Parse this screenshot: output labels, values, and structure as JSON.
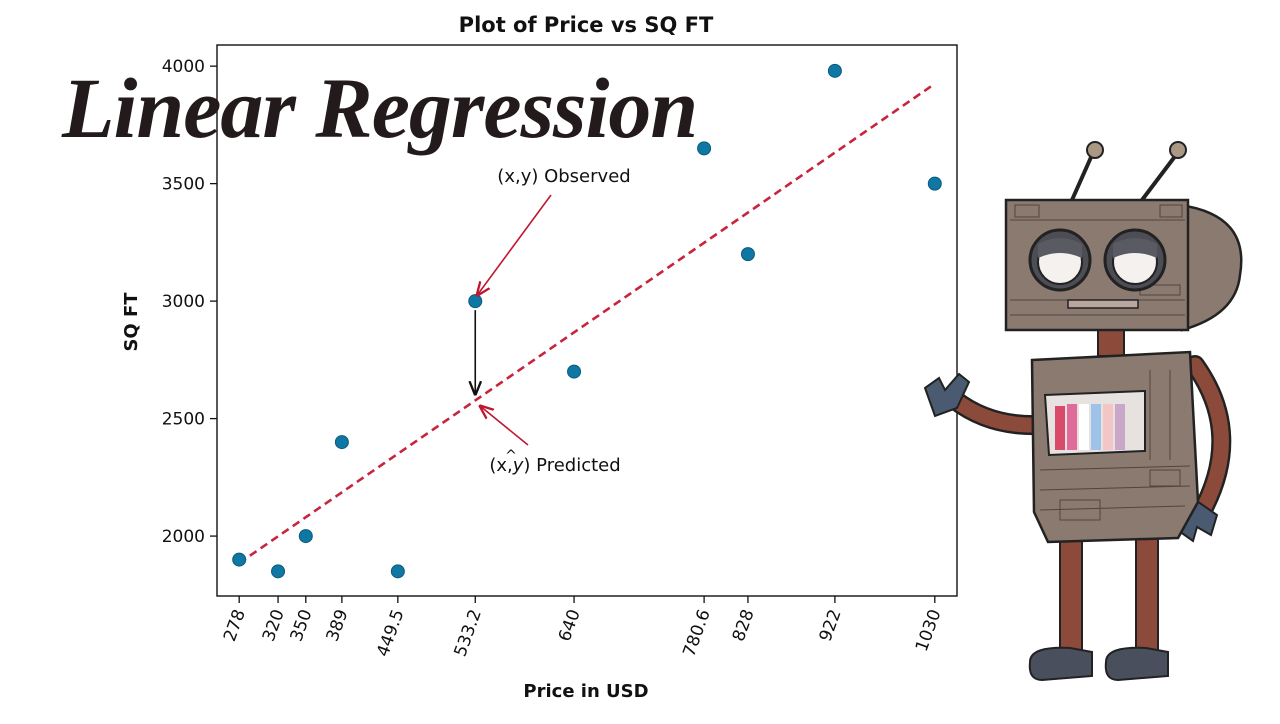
{
  "overlay_title": "Linear Regression",
  "chart_data": {
    "type": "scatter",
    "title": "Plot of Price vs SQ FT",
    "xlabel": "Price in USD",
    "ylabel": "SQ FT",
    "xlim": [
      254,
      1054
    ],
    "ylim": [
      1745,
      4090
    ],
    "xticks": [
      278,
      320,
      350,
      389,
      449.5,
      533.2,
      640,
      780.6,
      828,
      922,
      1030
    ],
    "xtick_labels": [
      "278",
      "320",
      "350",
      "389",
      "449.5",
      "533.2",
      "640",
      "780.6",
      "828",
      "922",
      "1030"
    ],
    "yticks": [
      2000,
      2500,
      3000,
      3500,
      4000
    ],
    "ytick_labels": [
      "2000",
      "2500",
      "3000",
      "3500",
      "4000"
    ],
    "points": [
      {
        "x": 278,
        "y": 1900
      },
      {
        "x": 320,
        "y": 1850
      },
      {
        "x": 350,
        "y": 2000
      },
      {
        "x": 389,
        "y": 2400
      },
      {
        "x": 449.5,
        "y": 1850
      },
      {
        "x": 533.2,
        "y": 3000
      },
      {
        "x": 640,
        "y": 2700
      },
      {
        "x": 780.6,
        "y": 3650
      },
      {
        "x": 828,
        "y": 3200
      },
      {
        "x": 922,
        "y": 3980
      },
      {
        "x": 1030,
        "y": 3500
      }
    ],
    "regression_line": {
      "x": [
        278,
        1030
      ],
      "y": [
        1885,
        3925
      ]
    },
    "annotations": {
      "observed": {
        "label": "(x,y) Observed",
        "point": {
          "x": 533.2,
          "y": 3000
        }
      },
      "predicted": {
        "label_prefix": "(x,",
        "label_y": "y",
        "label_hat": "^",
        "label_suffix": ") Predicted",
        "point": {
          "x": 533.2,
          "y": 2570
        }
      }
    },
    "colors": {
      "points": "#0f77a3",
      "point_edge": "#0b5a7d",
      "line": "#c8243c",
      "arrow": "#c0182f",
      "residual": "#111111"
    },
    "grid": false
  }
}
